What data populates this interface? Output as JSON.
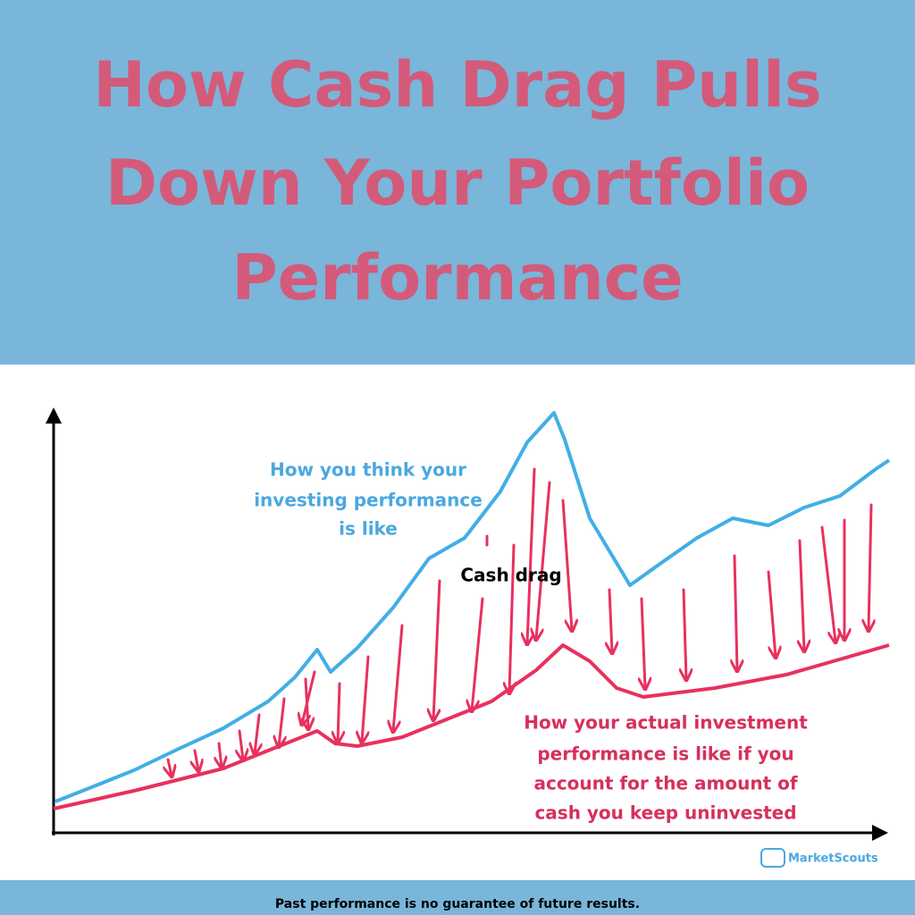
{
  "header": {
    "title": [
      "How Cash Drag Pulls",
      "Down Your Portfolio",
      "Performance"
    ]
  },
  "diagram": {
    "perceived_label": [
      "How you think your",
      "investing performance",
      "is like"
    ],
    "drag_label": "Cash drag",
    "actual_label": [
      "How your actual investment",
      "performance is like if you",
      "account for the amount of",
      "cash you keep uninvested"
    ],
    "brand": "MarketScouts"
  },
  "footer": {
    "disclaimer": "Past performance is no guarantee of future results."
  }
}
